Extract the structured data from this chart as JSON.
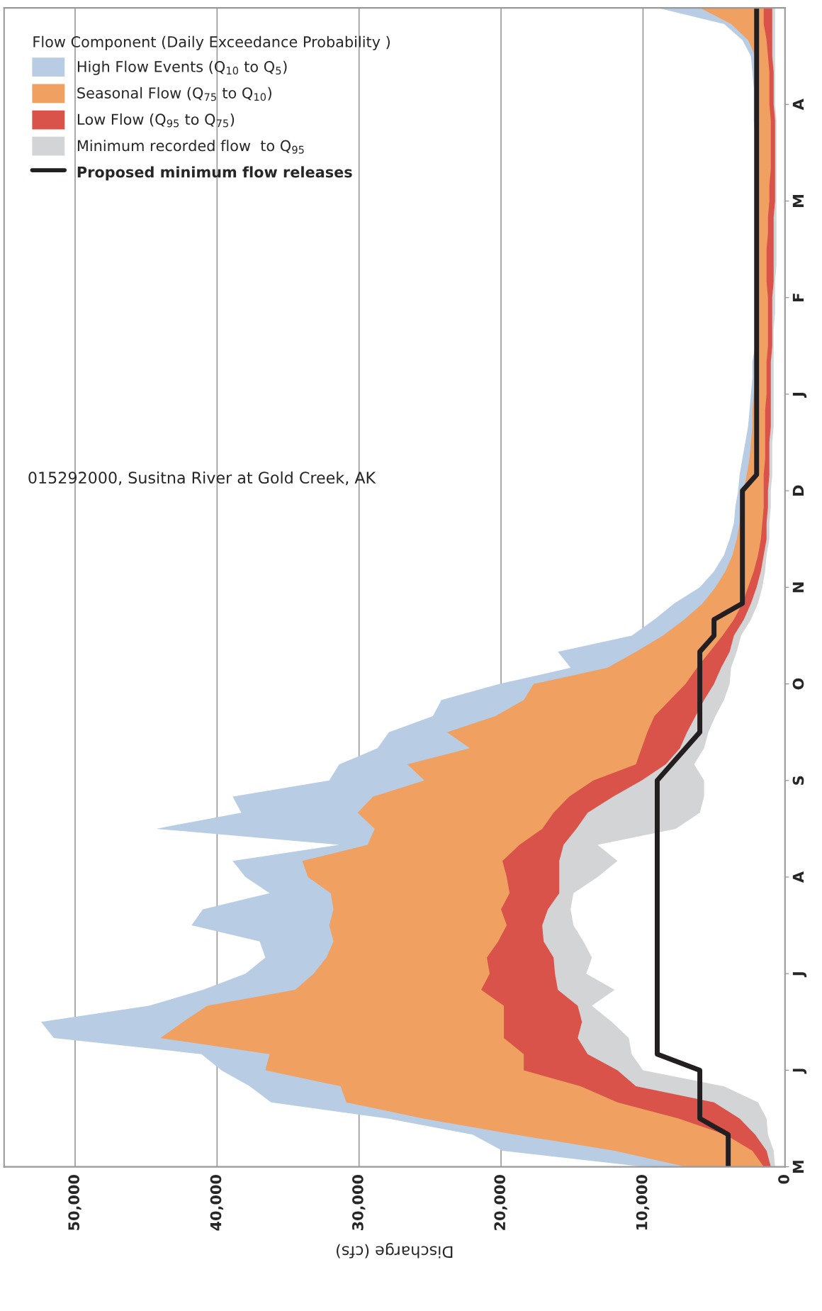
{
  "chart_data": {
    "type": "area",
    "orientation": "horizontal",
    "xlabel": "Discharge (cfs)",
    "legend_title": "Flow Component (Daily Exceedance Probability )",
    "annotations": [
      "015292000, Susitna River at Gold Creek, AK"
    ],
    "categories": [
      null,
      null,
      null,
      null,
      null,
      null,
      "A",
      null,
      null,
      null,
      null,
      null,
      "M",
      null,
      null,
      null,
      null,
      null,
      "F",
      null,
      null,
      null,
      null,
      null,
      "J",
      null,
      null,
      null,
      null,
      null,
      "D",
      null,
      null,
      null,
      null,
      null,
      "N",
      null,
      null,
      null,
      null,
      null,
      "O",
      null,
      null,
      null,
      null,
      null,
      "S",
      null,
      null,
      null,
      null,
      null,
      "A",
      null,
      null,
      null,
      null,
      null,
      "J",
      null,
      null,
      null,
      null,
      null,
      "J",
      null,
      null,
      null,
      null,
      null,
      "M"
    ],
    "series": [
      {
        "name": "High Flow Events (Q$_{10}$ to Q$_{5}$)",
        "color": "#b8cce4",
        "values": [
          9000,
          4300,
          3000,
          2400,
          2300,
          2200,
          2200,
          2200,
          2100,
          2100,
          2100,
          2100,
          2100,
          2100,
          2100,
          2100,
          2100,
          2100,
          2000,
          2000,
          2000,
          2100,
          2300,
          2300,
          2400,
          2500,
          2600,
          2800,
          3000,
          3200,
          3300,
          3500,
          3600,
          3900,
          4300,
          5000,
          6000,
          7800,
          9200,
          10800,
          16000,
          15100,
          20100,
          24200,
          24800,
          27900,
          28700,
          31400,
          32100,
          38900,
          38300,
          44300,
          31400,
          38900,
          38000,
          36300,
          41000,
          41800,
          37000,
          36600,
          38000,
          41000,
          44800,
          52400,
          51500,
          41100,
          39700,
          37700,
          36200,
          28000,
          22000,
          19900,
          10000
        ]
      },
      {
        "name": "Seasonal Flow (Q$_{75}$ to Q$_{10}$)",
        "color": "#f0a060",
        "values": [
          6000,
          3800,
          2600,
          2100,
          2100,
          2100,
          2100,
          2000,
          2000,
          2000,
          2000,
          2000,
          2000,
          2000,
          2000,
          2000,
          2000,
          2000,
          1900,
          1900,
          1900,
          1900,
          2000,
          2100,
          2200,
          2300,
          2300,
          2400,
          2500,
          2700,
          2900,
          3100,
          3200,
          3400,
          3700,
          4200,
          4900,
          5800,
          7100,
          8600,
          10500,
          12500,
          17700,
          18400,
          20400,
          23800,
          22200,
          26600,
          25400,
          29000,
          30100,
          28900,
          29400,
          34000,
          33600,
          32000,
          31800,
          32100,
          31800,
          32300,
          33200,
          34500,
          40700,
          42400,
          44000,
          36300,
          36600,
          31300,
          30900,
          25500,
          19000,
          12000,
          7000
        ]
      },
      {
        "name": "Low Flow (Q$_{95}$ to Q$_{75}$)",
        "color": "#d9534a",
        "values": [
          1500,
          1500,
          1300,
          1200,
          1100,
          1100,
          1100,
          1000,
          1000,
          1000,
          1000,
          1100,
          1100,
          1200,
          1200,
          1300,
          1300,
          1300,
          1200,
          1200,
          1200,
          1200,
          1300,
          1300,
          1300,
          1400,
          1400,
          1400,
          1400,
          1500,
          1500,
          1500,
          1600,
          1700,
          1900,
          2200,
          2600,
          3000,
          3600,
          4400,
          5300,
          6200,
          7000,
          8100,
          9200,
          9700,
          10100,
          10500,
          13500,
          15200,
          16300,
          17100,
          18700,
          19900,
          19600,
          19400,
          20000,
          19600,
          20200,
          21000,
          20800,
          21400,
          19800,
          19800,
          19800,
          18400,
          18400,
          14400,
          11800,
          7500,
          4200,
          2300,
          1500
        ]
      },
      {
        "name": "Minimum recorded flow  to Q$_{95}$",
        "color": "#d3d4d6",
        "values": [
          900,
          900,
          900,
          900,
          800,
          800,
          800,
          700,
          700,
          700,
          700,
          700,
          700,
          800,
          800,
          800,
          800,
          800,
          900,
          900,
          900,
          900,
          1000,
          1000,
          1000,
          1000,
          1000,
          1100,
          1100,
          1100,
          1200,
          1200,
          1300,
          1300,
          1500,
          1700,
          2000,
          2400,
          2900,
          3600,
          3900,
          4500,
          5000,
          5700,
          6300,
          6900,
          7400,
          8400,
          10100,
          12100,
          13900,
          14700,
          15600,
          15900,
          15900,
          15900,
          16700,
          17100,
          17000,
          16300,
          16200,
          16000,
          14600,
          14300,
          14600,
          13900,
          11800,
          10500,
          5000,
          3200,
          2100,
          1300,
          1000
        ]
      },
      {
        "color": "#ffffff",
        "values": [
          700,
          700,
          700,
          700,
          700,
          700,
          700,
          600,
          600,
          600,
          600,
          600,
          600,
          600,
          600,
          600,
          600,
          700,
          700,
          700,
          800,
          800,
          800,
          800,
          800,
          800,
          800,
          900,
          900,
          900,
          1000,
          1000,
          1100,
          1100,
          1300,
          1400,
          1600,
          1900,
          2400,
          3100,
          3400,
          3800,
          3900,
          4300,
          4900,
          5400,
          5700,
          6400,
          5700,
          5700,
          6000,
          7700,
          13200,
          11800,
          13200,
          14900,
          15100,
          14900,
          14200,
          13600,
          14000,
          12000,
          13600,
          12200,
          11000,
          10800,
          10000,
          4300,
          1900,
          1300,
          1200,
          800,
          700
        ]
      },
      {
        "name": "Proposed minimum flow releases",
        "type": "line",
        "color": "#231f20",
        "values": [
          2000,
          2000,
          2000,
          2000,
          2000,
          2000,
          2000,
          2000,
          2000,
          2000,
          2000,
          2000,
          2000,
          2000,
          2000,
          2000,
          2000,
          2000,
          2000,
          2000,
          2000,
          2000,
          2000,
          2000,
          2000,
          2000,
          2000,
          2000,
          2000,
          2000,
          3000,
          3000,
          3000,
          3000,
          3000,
          3000,
          3000,
          3000,
          5000,
          5000,
          6000,
          6000,
          6000,
          6000,
          6000,
          6000,
          7000,
          8000,
          9000,
          9000,
          9000,
          9000,
          9000,
          9000,
          9000,
          9000,
          9000,
          9000,
          9000,
          9000,
          9000,
          9000,
          9000,
          9000,
          9000,
          9000,
          6000,
          6000,
          6000,
          6000,
          4000,
          4000,
          4000
        ]
      }
    ],
    "xlim": [
      55000,
      0
    ],
    "xticks": [
      {
        "value": 50000,
        "label": "50,000"
      },
      {
        "value": 40000,
        "label": "40,000"
      },
      {
        "value": 30000,
        "label": "30,000"
      },
      {
        "value": 20000,
        "label": "20,000"
      },
      {
        "value": 10000,
        "label": "10,000"
      },
      0
    ],
    "grid": "x",
    "legend": "top left"
  }
}
